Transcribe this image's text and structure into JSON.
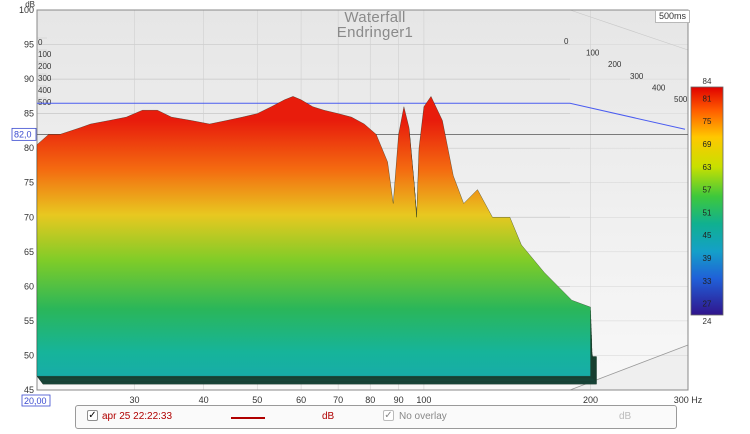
{
  "chart_data": {
    "type": "area",
    "title": "Waterfall",
    "subtitle": "Endringer1",
    "time_window_label": "500ms",
    "yunit": "dB",
    "xunit": "Hz",
    "x_scale": "log",
    "xlim": [
      20,
      300
    ],
    "ylim": [
      45,
      100
    ],
    "x_ticks": [
      {
        "value": 30,
        "label": "30"
      },
      {
        "value": 40,
        "label": "40"
      },
      {
        "value": 50,
        "label": "50"
      },
      {
        "value": 60,
        "label": "60"
      },
      {
        "value": 70,
        "label": "70"
      },
      {
        "value": 80,
        "label": "80"
      },
      {
        "value": 90,
        "label": "90"
      },
      {
        "value": 100,
        "label": "100"
      },
      {
        "value": 200,
        "label": "200"
      },
      {
        "value": 300,
        "label": "300 Hz"
      }
    ],
    "y_ticks": [
      100,
      95,
      90,
      85,
      80,
      75,
      70,
      65,
      60,
      55,
      50,
      45
    ],
    "time_ticks_ms": [
      "0",
      "100",
      "200",
      "300",
      "400",
      "500"
    ],
    "cursor": {
      "db_label": "82,0",
      "freq_label": "20,00"
    },
    "reference_level_db": 86.5,
    "colorbar": {
      "min": 24,
      "max": 84,
      "ticks": [
        84,
        81,
        75,
        69,
        63,
        57,
        51,
        45,
        39,
        33,
        27,
        24
      ]
    },
    "front_slice": {
      "label": "0 ms",
      "x": [
        20,
        21,
        22,
        23,
        24,
        25,
        27,
        29,
        31,
        33,
        35,
        38,
        41,
        44,
        47,
        50,
        53,
        56,
        58,
        60,
        63,
        66,
        70,
        74,
        78,
        82,
        86,
        88,
        90,
        92,
        94,
        96,
        97,
        98,
        100,
        103,
        108,
        113,
        118,
        125,
        133,
        143,
        150,
        165,
        185,
        200
      ],
      "values": [
        80.5,
        82,
        82,
        82.5,
        83,
        83.5,
        84,
        84.5,
        85.5,
        85.5,
        84.5,
        84,
        83.5,
        84,
        84.5,
        85,
        86,
        87,
        87.5,
        87,
        86,
        85.5,
        85,
        84.5,
        83.5,
        82,
        78,
        72,
        82,
        86,
        83,
        75,
        70,
        80,
        86,
        87.5,
        84,
        76,
        72,
        74,
        70,
        70,
        66,
        62,
        58,
        57
      ]
    }
  },
  "controls": {
    "measurement_checked": "✓",
    "measurement_label": "apr 25 22:22:33",
    "series_unit": "dB",
    "overlay_checked": "✓",
    "overlay_label": "No overlay",
    "overlay_unit": "dB"
  },
  "colors": {
    "series_line": "#b00000",
    "reference_line": "#4a5cf0",
    "cursor_text": "#3a4ad0"
  }
}
